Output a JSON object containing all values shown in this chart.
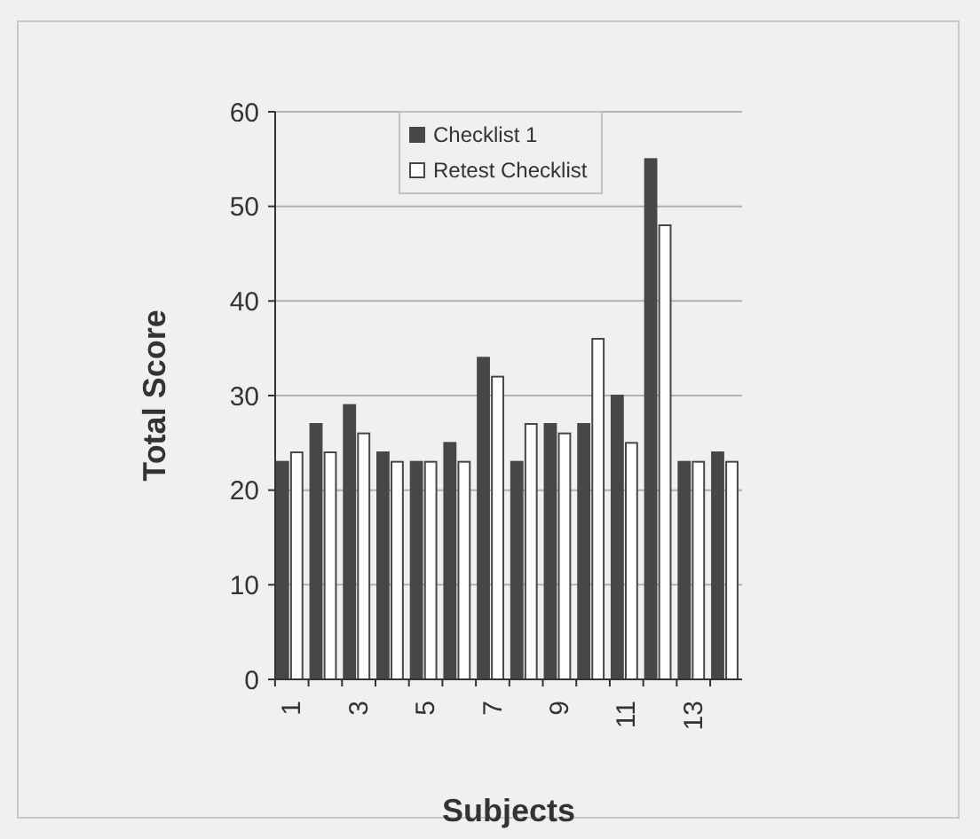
{
  "chart_data": {
    "type": "bar",
    "xlabel": "Subjects",
    "ylabel": "Total Score",
    "categories": [
      "1",
      null,
      "3",
      null,
      "5",
      null,
      "7",
      null,
      "9",
      null,
      "11",
      null,
      "13",
      null
    ],
    "series": [
      {
        "name": "Checklist 1",
        "color": "#474747",
        "values": [
          23,
          27,
          29,
          24,
          23,
          25,
          34,
          23,
          27,
          27,
          30,
          55,
          23,
          24
        ]
      },
      {
        "name": "Retest Checklist",
        "color": "#ffffff",
        "values": [
          24,
          24,
          26,
          23,
          23,
          23,
          32,
          27,
          26,
          36,
          25,
          48,
          23,
          23
        ]
      }
    ],
    "ylim": [
      0,
      60
    ],
    "yticks": [
      0,
      10,
      20,
      30,
      40,
      50,
      60
    ],
    "grid": "y",
    "legend": "top"
  }
}
